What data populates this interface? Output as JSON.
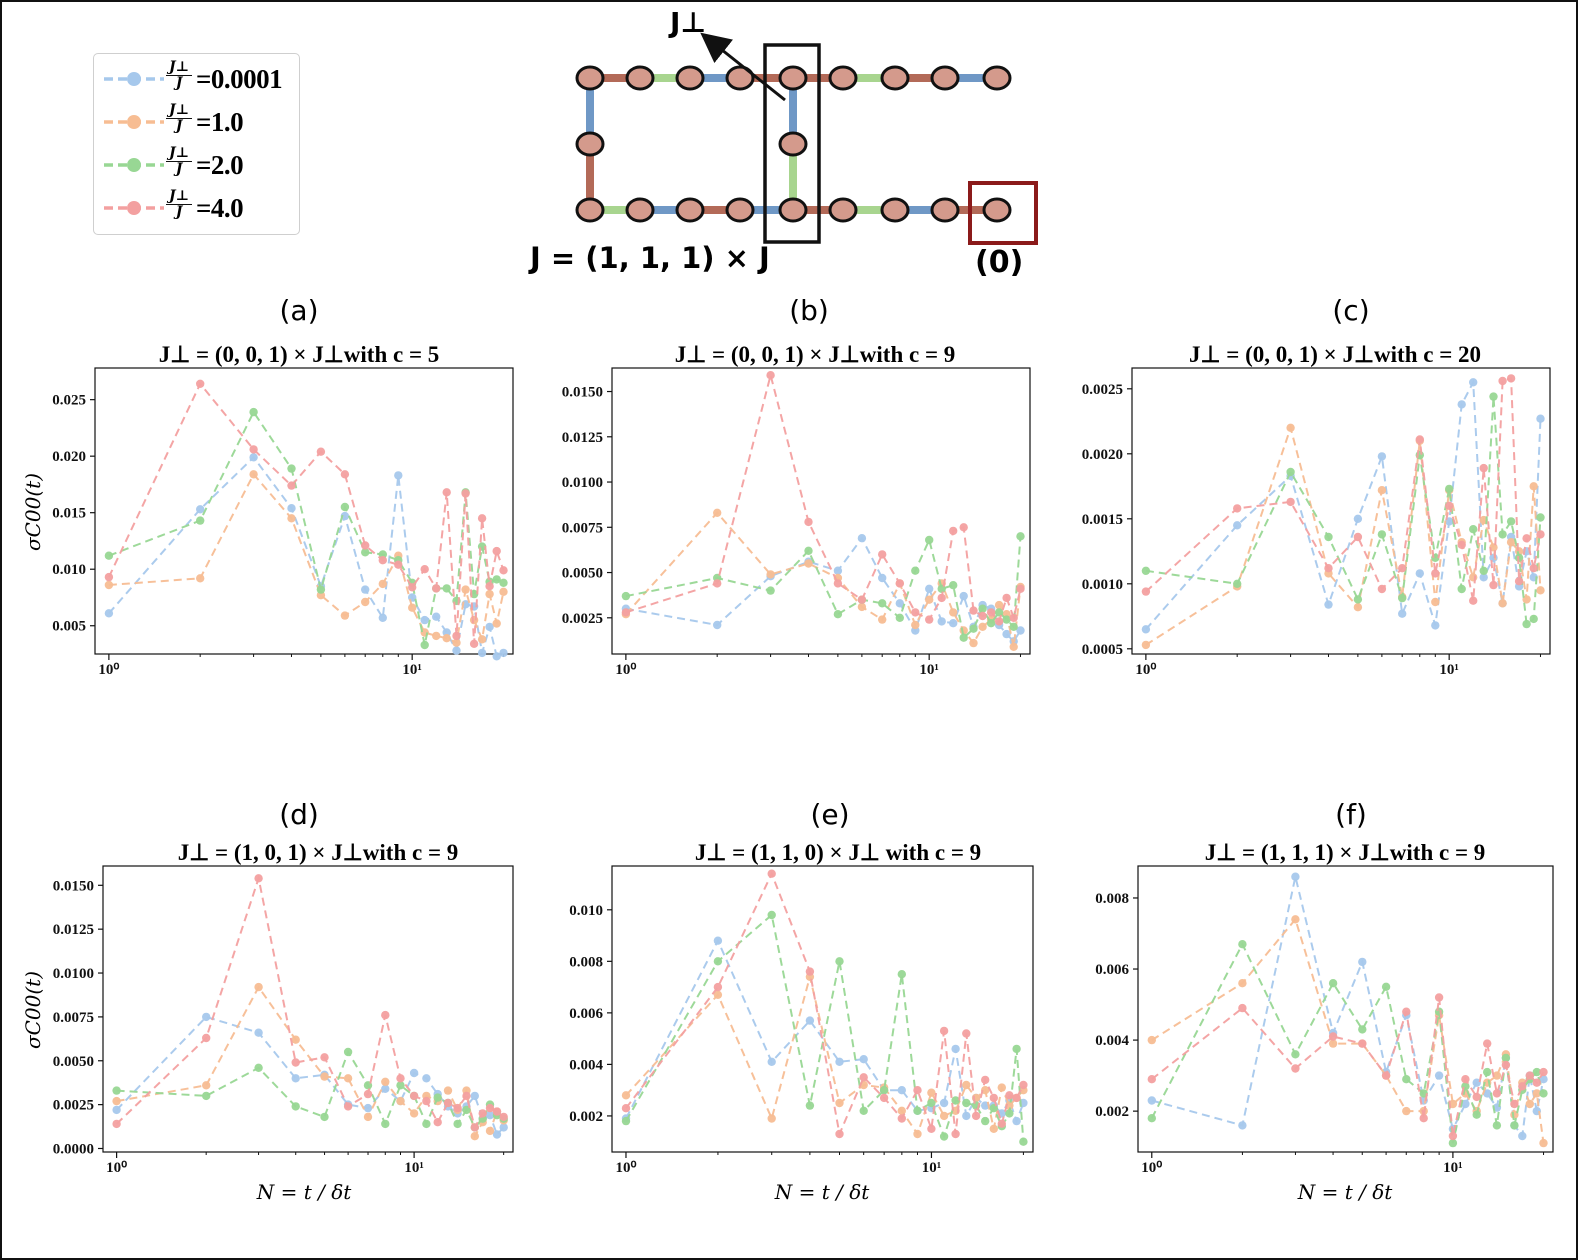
{
  "legend": {
    "ratio_numerator": "J⊥",
    "ratio_denominator": "J",
    "items": [
      {
        "label": "=0.0001",
        "color": "#a6c8ec"
      },
      {
        "label": "=1.0",
        "color": "#f7bd93"
      },
      {
        "label": "=2.0",
        "color": "#98d794"
      },
      {
        "label": "=4.0",
        "color": "#f3a0a0"
      }
    ]
  },
  "diagram": {
    "jperp_label": "J⊥",
    "j_label": "J = (1, 1, 1) × J",
    "site_label": "(0)",
    "node_color": "#d49a8c",
    "bond_colors": {
      "blue": "#6f98c6",
      "red": "#b36a58",
      "green": "#a8d58f"
    }
  },
  "axes": {
    "x_label": "N = t / δt",
    "y_label": "σC00(t)"
  },
  "chart_data": [
    {
      "panel": "(a)",
      "type": "line",
      "title": "J⊥ = (0, 0, 1) × J⊥with c = 5",
      "x_scale": "log",
      "xlim": [
        0.9,
        21.5
      ],
      "ylim": [
        0.0025,
        0.0278
      ],
      "yticks": [
        "0.005",
        "0.010",
        "0.015",
        "0.020",
        "0.025"
      ],
      "ytick_values": [
        0.005,
        0.01,
        0.015,
        0.02,
        0.025
      ],
      "xticks": [
        "10⁰",
        "10¹"
      ],
      "x": [
        1,
        2,
        3,
        4,
        5,
        6,
        7,
        8,
        9,
        10,
        11,
        12,
        13,
        14,
        15,
        16,
        17,
        18,
        19,
        20
      ],
      "series": [
        {
          "color": "#a6c8ec",
          "values": [
            0.0061,
            0.0153,
            0.0199,
            0.0154,
            0.0085,
            0.0147,
            0.0082,
            0.0057,
            0.0183,
            0.0075,
            0.0055,
            0.0058,
            0.0044,
            0.0028,
            0.0069,
            0.0067,
            0.0026,
            0.0049,
            0.0023,
            0.0026
          ]
        },
        {
          "color": "#f7bd93",
          "values": [
            0.0086,
            0.0092,
            0.0184,
            0.0145,
            0.0077,
            0.0059,
            0.0071,
            0.0087,
            0.0112,
            0.0066,
            0.0044,
            0.0041,
            0.0039,
            0.0035,
            0.0082,
            0.0055,
            0.0038,
            0.0078,
            0.0052,
            0.008
          ]
        },
        {
          "color": "#98d794",
          "values": [
            0.0112,
            0.0143,
            0.0239,
            0.0189,
            0.0082,
            0.0155,
            0.0115,
            0.0113,
            0.0108,
            0.0088,
            0.0033,
            0.0083,
            0.0083,
            0.0072,
            0.0168,
            0.0078,
            0.012,
            0.0089,
            0.0091,
            0.0088
          ]
        },
        {
          "color": "#f3a0a0",
          "values": [
            0.0093,
            0.0264,
            0.0206,
            0.0174,
            0.0204,
            0.0184,
            0.0121,
            0.0108,
            0.0104,
            0.0084,
            0.01,
            0.0083,
            0.0168,
            0.0041,
            0.0167,
            0.0034,
            0.0145,
            0.0085,
            0.0116,
            0.0099
          ]
        }
      ]
    },
    {
      "panel": "(b)",
      "type": "line",
      "title": "J⊥ = (0, 0, 1) × J⊥with c = 9",
      "x_scale": "log",
      "xlim": [
        0.9,
        21.5
      ],
      "ylim": [
        0.0005,
        0.0163
      ],
      "yticks": [
        "0.0025",
        "0.0050",
        "0.0075",
        "0.0100",
        "0.0125",
        "0.0150"
      ],
      "ytick_values": [
        0.0025,
        0.005,
        0.0075,
        0.01,
        0.0125,
        0.015
      ],
      "xticks": [
        "10⁰",
        "10¹"
      ],
      "x": [
        1,
        2,
        3,
        4,
        5,
        6,
        7,
        8,
        9,
        10,
        11,
        12,
        13,
        14,
        15,
        16,
        17,
        18,
        19,
        20
      ],
      "series": [
        {
          "color": "#a6c8ec",
          "values": [
            0.003,
            0.0021,
            0.0048,
            0.0056,
            0.0051,
            0.0069,
            0.0047,
            0.0033,
            0.0018,
            0.0041,
            0.0023,
            0.0022,
            0.0037,
            0.002,
            0.0032,
            0.003,
            0.0021,
            0.0016,
            0.0012,
            0.0018
          ]
        },
        {
          "color": "#f7bd93",
          "values": [
            0.0027,
            0.0083,
            0.0049,
            0.0055,
            0.0047,
            0.0031,
            0.0024,
            0.0044,
            0.0021,
            0.0035,
            0.0044,
            0.0028,
            0.0018,
            0.0011,
            0.002,
            0.0024,
            0.0032,
            0.0027,
            0.0009,
            0.0042
          ]
        },
        {
          "color": "#98d794",
          "values": [
            0.0037,
            0.0047,
            0.004,
            0.0062,
            0.0027,
            0.0035,
            0.0033,
            0.0025,
            0.0051,
            0.0068,
            0.0041,
            0.0043,
            0.0014,
            0.0019,
            0.003,
            0.0022,
            0.0028,
            0.0024,
            0.002,
            0.007
          ]
        },
        {
          "color": "#f3a0a0",
          "values": [
            0.0028,
            0.0044,
            0.0159,
            0.0078,
            0.0044,
            0.0035,
            0.006,
            0.0044,
            0.0028,
            0.0024,
            0.0036,
            0.0073,
            0.0075,
            0.0029,
            0.0026,
            0.0028,
            0.0023,
            0.0036,
            0.0025,
            0.0041
          ]
        }
      ]
    },
    {
      "panel": "(c)",
      "type": "line",
      "title": "J⊥ = (0, 0, 1) × J⊥with c = 20",
      "x_scale": "log",
      "xlim": [
        0.9,
        21.5
      ],
      "ylim": [
        0.00046,
        0.00266
      ],
      "yticks": [
        "0.0005",
        "0.0010",
        "0.0015",
        "0.0020",
        "0.0025"
      ],
      "ytick_values": [
        0.0005,
        0.001,
        0.0015,
        0.002,
        0.0025
      ],
      "xticks": [
        "10⁰",
        "10¹"
      ],
      "x": [
        1,
        2,
        3,
        4,
        5,
        6,
        7,
        8,
        9,
        10,
        11,
        12,
        13,
        14,
        15,
        16,
        17,
        18,
        19,
        20
      ],
      "series": [
        {
          "color": "#a6c8ec",
          "values": [
            0.00065,
            0.00145,
            0.00183,
            0.00084,
            0.0015,
            0.00198,
            0.00077,
            0.00108,
            0.00068,
            0.00148,
            0.00238,
            0.00255,
            0.00105,
            0.0012,
            0.00085,
            0.00136,
            0.00098,
            0.00125,
            0.00105,
            0.00227
          ]
        },
        {
          "color": "#f7bd93",
          "values": [
            0.00053,
            0.00098,
            0.0022,
            0.00108,
            0.00082,
            0.00172,
            0.0009,
            0.0021,
            0.00086,
            0.00172,
            0.00132,
            0.00105,
            0.00149,
            0.00128,
            0.00085,
            0.00132,
            0.00125,
            0.00088,
            0.00175,
            0.00095
          ]
        },
        {
          "color": "#98d794",
          "values": [
            0.0011,
            0.001,
            0.00186,
            0.00136,
            0.00088,
            0.00138,
            0.00089,
            0.00199,
            0.0012,
            0.00173,
            0.00096,
            0.00142,
            0.0011,
            0.00244,
            0.00138,
            0.00148,
            0.0012,
            0.00069,
            0.00073,
            0.00151
          ]
        },
        {
          "color": "#f3a0a0",
          "values": [
            0.00094,
            0.00158,
            0.00163,
            0.00112,
            0.00136,
            0.00096,
            0.00112,
            0.00211,
            0.00108,
            0.0016,
            0.0013,
            0.00087,
            0.00189,
            0.00099,
            0.00256,
            0.00258,
            0.00102,
            0.00135,
            0.00112,
            0.00138
          ]
        }
      ]
    },
    {
      "panel": "(d)",
      "type": "line",
      "title": "J⊥ = (1, 0, 1) × J⊥with c = 9",
      "x_scale": "log",
      "xlim": [
        0.9,
        21.5
      ],
      "ylim": [
        -0.0002,
        0.0161
      ],
      "yticks": [
        "0.0000",
        "0.0025",
        "0.0050",
        "0.0075",
        "0.0100",
        "0.0125",
        "0.0150"
      ],
      "ytick_values": [
        0.0,
        0.0025,
        0.005,
        0.0075,
        0.01,
        0.0125,
        0.015
      ],
      "xticks": [
        "10⁰",
        "10¹"
      ],
      "x": [
        1,
        2,
        3,
        4,
        5,
        6,
        7,
        8,
        9,
        10,
        11,
        12,
        13,
        14,
        15,
        16,
        17,
        18,
        19,
        20
      ],
      "series": [
        {
          "color": "#a6c8ec",
          "values": [
            0.0022,
            0.0075,
            0.0066,
            0.004,
            0.0042,
            0.0025,
            0.0023,
            0.0034,
            0.0027,
            0.0043,
            0.004,
            0.0031,
            0.0024,
            0.002,
            0.0024,
            0.003,
            0.0017,
            0.0019,
            0.0008,
            0.0012
          ]
        },
        {
          "color": "#f7bd93",
          "values": [
            0.0027,
            0.0036,
            0.0092,
            0.0062,
            0.0041,
            0.004,
            0.0018,
            0.0038,
            0.0027,
            0.002,
            0.003,
            0.0027,
            0.0033,
            0.0022,
            0.0033,
            0.0007,
            0.0015,
            0.001,
            0.0021,
            0.0016
          ]
        },
        {
          "color": "#98d794",
          "values": [
            0.0033,
            0.003,
            0.0046,
            0.0024,
            0.0018,
            0.0055,
            0.0036,
            0.0014,
            0.0036,
            0.003,
            0.0014,
            0.0029,
            0.0026,
            0.0014,
            0.0022,
            0.0012,
            0.0017,
            0.0025,
            0.0019,
            0.0017
          ]
        },
        {
          "color": "#f3a0a0",
          "values": [
            0.0014,
            0.0063,
            0.0154,
            0.0049,
            0.0052,
            0.0024,
            0.0031,
            0.0076,
            0.004,
            0.003,
            0.0027,
            0.0015,
            0.0026,
            0.0023,
            0.003,
            0.0012,
            0.002,
            0.0023,
            0.0021,
            0.0018
          ]
        }
      ]
    },
    {
      "panel": "(e)",
      "type": "line",
      "title": "J⊥ = (1, 1, 0) × J⊥ with c = 9",
      "x_scale": "log",
      "xlim": [
        0.9,
        21.5
      ],
      "ylim": [
        0.0006,
        0.0117
      ],
      "yticks": [
        "0.002",
        "0.004",
        "0.006",
        "0.008",
        "0.010"
      ],
      "ytick_values": [
        0.002,
        0.004,
        0.006,
        0.008,
        0.01
      ],
      "xticks": [
        "10⁰",
        "10¹"
      ],
      "x": [
        1,
        2,
        3,
        4,
        5,
        6,
        7,
        8,
        9,
        10,
        11,
        12,
        13,
        14,
        15,
        16,
        17,
        18,
        19,
        20
      ],
      "series": [
        {
          "color": "#a6c8ec",
          "values": [
            0.0019,
            0.0088,
            0.0041,
            0.0057,
            0.0041,
            0.0042,
            0.003,
            0.003,
            0.0022,
            0.0023,
            0.0025,
            0.0046,
            0.002,
            0.0027,
            0.0024,
            0.0024,
            0.0021,
            0.0026,
            0.0018,
            0.0025
          ]
        },
        {
          "color": "#f7bd93",
          "values": [
            0.0028,
            0.0067,
            0.0019,
            0.0074,
            0.0025,
            0.0032,
            0.0031,
            0.0022,
            0.0013,
            0.0029,
            0.002,
            0.0022,
            0.0032,
            0.0027,
            0.003,
            0.0015,
            0.0031,
            0.0024,
            0.0027,
            0.003
          ]
        },
        {
          "color": "#98d794",
          "values": [
            0.0018,
            0.008,
            0.0098,
            0.0024,
            0.008,
            0.0022,
            0.003,
            0.0075,
            0.0022,
            0.0025,
            0.0012,
            0.0026,
            0.0025,
            0.0024,
            0.0018,
            0.0023,
            0.0016,
            0.0021,
            0.0046,
            0.001
          ]
        },
        {
          "color": "#f3a0a0",
          "values": [
            0.0023,
            0.007,
            0.0114,
            0.0076,
            0.0013,
            0.0035,
            0.0027,
            0.0019,
            0.003,
            0.0015,
            0.0053,
            0.0013,
            0.0052,
            0.002,
            0.0034,
            0.0027,
            0.0017,
            0.0028,
            0.0027,
            0.0032
          ]
        }
      ]
    },
    {
      "panel": "(f)",
      "type": "line",
      "title": "J⊥ = (1, 1, 1) × J⊥with c = 9",
      "x_scale": "log",
      "xlim": [
        0.9,
        21.5
      ],
      "ylim": [
        0.00085,
        0.0089
      ],
      "yticks": [
        "0.002",
        "0.004",
        "0.006",
        "0.008"
      ],
      "ytick_values": [
        0.002,
        0.004,
        0.006,
        0.008
      ],
      "xticks": [
        "10⁰",
        "10¹"
      ],
      "x": [
        1,
        2,
        3,
        4,
        5,
        6,
        7,
        8,
        9,
        10,
        11,
        12,
        13,
        14,
        15,
        16,
        17,
        18,
        19,
        20
      ],
      "series": [
        {
          "color": "#a6c8ec",
          "values": [
            0.0023,
            0.0016,
            0.0086,
            0.0042,
            0.0062,
            0.0031,
            0.0047,
            0.0023,
            0.003,
            0.0015,
            0.0022,
            0.0028,
            0.0025,
            0.0021,
            0.0035,
            0.0016,
            0.0013,
            0.003,
            0.002,
            0.0029
          ]
        },
        {
          "color": "#f7bd93",
          "values": [
            0.004,
            0.0056,
            0.0074,
            0.0039,
            0.0039,
            0.003,
            0.002,
            0.002,
            0.0047,
            0.0022,
            0.0025,
            0.002,
            0.0028,
            0.003,
            0.0036,
            0.0019,
            0.0028,
            0.0022,
            0.0025,
            0.0011
          ]
        },
        {
          "color": "#98d794",
          "values": [
            0.0018,
            0.0067,
            0.0036,
            0.0056,
            0.0043,
            0.0055,
            0.0029,
            0.0025,
            0.0048,
            0.0011,
            0.0027,
            0.0019,
            0.0031,
            0.0016,
            0.0035,
            0.0016,
            0.0026,
            0.0029,
            0.0031,
            0.0025
          ]
        },
        {
          "color": "#f3a0a0",
          "values": [
            0.0029,
            0.0049,
            0.0032,
            0.0041,
            0.0039,
            0.003,
            0.0048,
            0.0018,
            0.0052,
            0.0013,
            0.0029,
            0.0024,
            0.0039,
            0.0025,
            0.0033,
            0.0022,
            0.0027,
            0.003,
            0.0028,
            0.0031
          ]
        }
      ]
    }
  ]
}
